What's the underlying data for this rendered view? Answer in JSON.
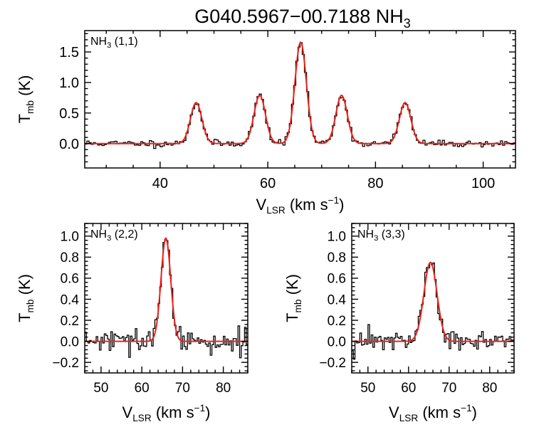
{
  "title": {
    "main": "G040.5967−00.7188 NH",
    "sub": "3"
  },
  "colors": {
    "observed": "#000000",
    "fit": "#e8231c",
    "axis": "#000000"
  },
  "chart_data": [
    {
      "type": "line",
      "panel": "top",
      "label": {
        "main": "NH",
        "sub": "3",
        "rest": " (1,1)"
      },
      "xlabel": {
        "main": "V",
        "sub": "LSR",
        "rest": " (km s",
        "sup": "−1",
        "close": ")"
      },
      "ylabel": {
        "main": "T",
        "sub": "mb",
        "rest": " (K)"
      },
      "xlim": [
        26,
        106
      ],
      "ylim": [
        -0.4,
        1.85
      ],
      "xticks": [
        40,
        60,
        80,
        100
      ],
      "xtick_labels": [
        "40",
        "60",
        "80",
        "100"
      ],
      "yticks": [
        0.0,
        0.5,
        1.0,
        1.5
      ],
      "ytick_labels": [
        "0.0",
        "0.5",
        "1.0",
        "1.5"
      ],
      "channel_width": 0.4,
      "noise": 0.028,
      "seed": 11,
      "series": [
        {
          "name": "observed",
          "style": "histogram"
        },
        {
          "name": "fit",
          "style": "gaussian",
          "components": [
            {
              "center": 46.7,
              "amp": 0.67,
              "fwhm": 2.5
            },
            {
              "center": 58.5,
              "amp": 0.79,
              "fwhm": 2.5
            },
            {
              "center": 66.1,
              "amp": 1.66,
              "fwhm": 2.5
            },
            {
              "center": 73.7,
              "amp": 0.79,
              "fwhm": 2.5
            },
            {
              "center": 85.5,
              "amp": 0.67,
              "fwhm": 2.5
            }
          ]
        }
      ]
    },
    {
      "type": "line",
      "panel": "bottom-left",
      "label": {
        "main": "NH",
        "sub": "3",
        "rest": " (2,2)"
      },
      "xlabel": {
        "main": "V",
        "sub": "LSR",
        "rest": " (km s",
        "sup": "−1",
        "close": ")"
      },
      "ylabel": {
        "main": "T",
        "sub": "mb",
        "rest": " (K)"
      },
      "xlim": [
        46,
        86
      ],
      "ylim": [
        -0.3,
        1.12
      ],
      "xticks": [
        50,
        60,
        70,
        80
      ],
      "xtick_labels": [
        "50",
        "60",
        "70",
        "80"
      ],
      "yticks": [
        -0.2,
        0.0,
        0.2,
        0.4,
        0.6,
        0.8,
        1.0
      ],
      "ytick_labels": [
        "−0.2",
        "0.0",
        "0.2",
        "0.4",
        "0.6",
        "0.8",
        "1.0"
      ],
      "channel_width": 0.4,
      "noise": 0.055,
      "seed": 29,
      "series": [
        {
          "name": "observed",
          "style": "histogram"
        },
        {
          "name": "fit",
          "style": "gaussian",
          "components": [
            {
              "center": 65.9,
              "amp": 0.98,
              "fwhm": 2.8
            }
          ]
        }
      ]
    },
    {
      "type": "line",
      "panel": "bottom-right",
      "label": {
        "main": "NH",
        "sub": "3",
        "rest": " (3,3)"
      },
      "xlabel": {
        "main": "V",
        "sub": "LSR",
        "rest": " (km s",
        "sup": "−1",
        "close": ")"
      },
      "ylabel": {
        "main": "T",
        "sub": "mb",
        "rest": " (K)"
      },
      "xlim": [
        46,
        86
      ],
      "ylim": [
        -0.3,
        1.12
      ],
      "xticks": [
        50,
        60,
        70,
        80
      ],
      "xtick_labels": [
        "50",
        "60",
        "70",
        "80"
      ],
      "yticks": [
        -0.2,
        0.0,
        0.2,
        0.4,
        0.6,
        0.8,
        1.0
      ],
      "ytick_labels": [
        "−0.2",
        "0.0",
        "0.2",
        "0.4",
        "0.6",
        "0.8",
        "1.0"
      ],
      "channel_width": 0.4,
      "noise": 0.05,
      "seed": 47,
      "series": [
        {
          "name": "observed",
          "style": "histogram"
        },
        {
          "name": "fit",
          "style": "gaussian",
          "components": [
            {
              "center": 65.4,
              "amp": 0.75,
              "fwhm": 3.8
            }
          ]
        }
      ]
    }
  ]
}
